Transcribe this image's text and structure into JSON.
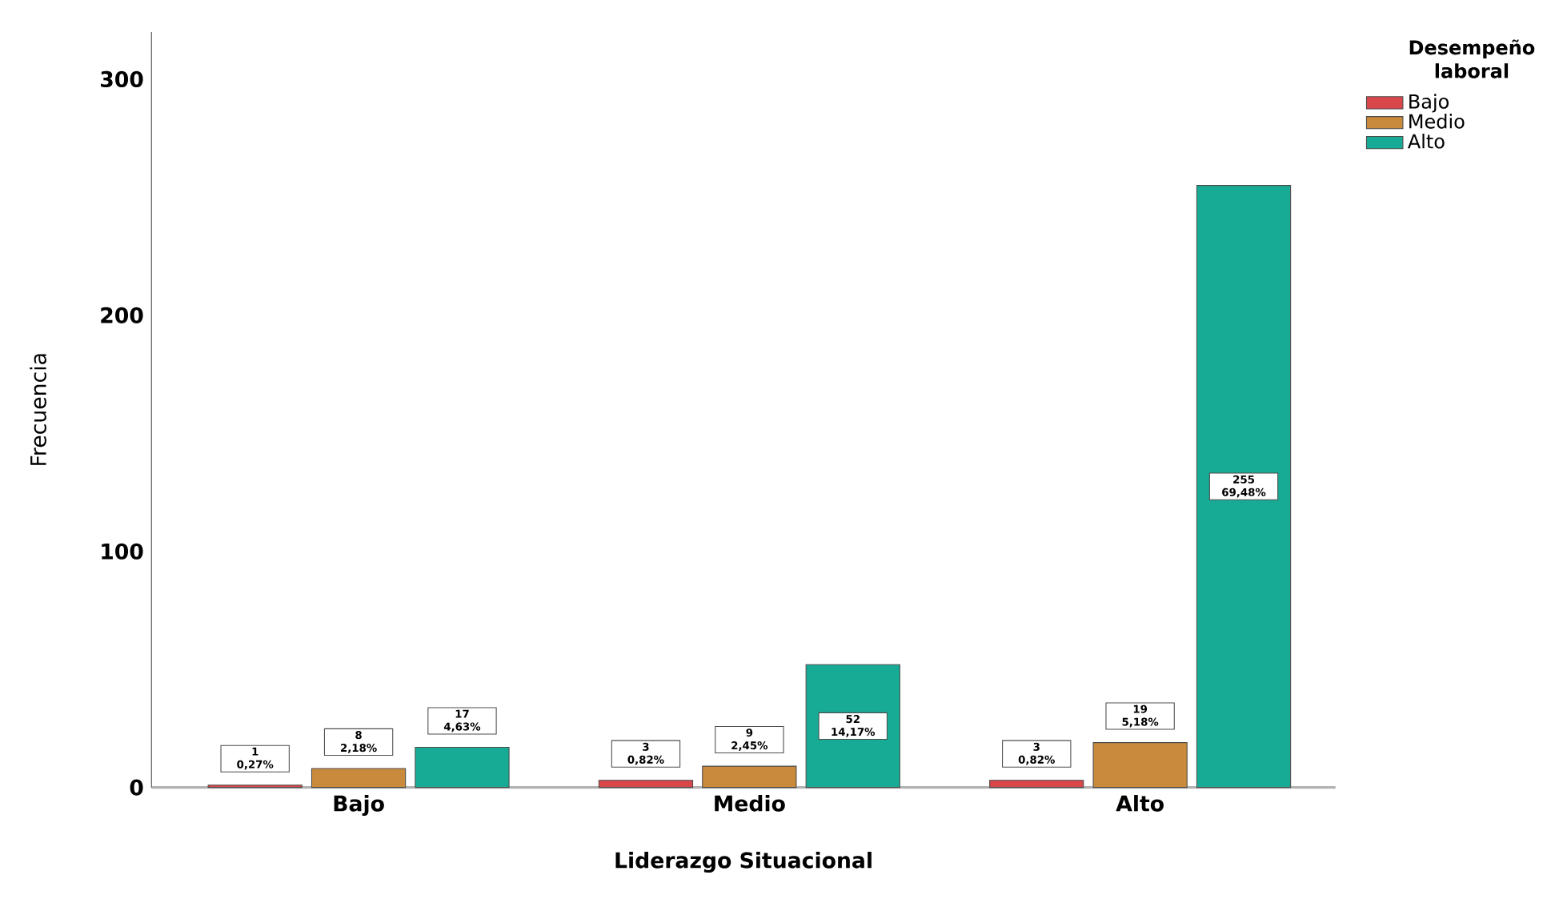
{
  "chart_data": {
    "type": "bar",
    "xlabel": "Liderazgo Situacional",
    "ylabel": "Frecuencia",
    "legend_title": "Desempeño laboral",
    "categories": [
      "Bajo",
      "Medio",
      "Alto"
    ],
    "series": [
      {
        "name": "Bajo",
        "color": "#d9474b",
        "values": [
          1,
          3,
          3
        ],
        "value_labels": [
          "1 0,27%",
          "3 0,82%",
          "3 0,82%"
        ]
      },
      {
        "name": "Medio",
        "color": "#c98a3c",
        "values": [
          8,
          9,
          19
        ],
        "value_labels": [
          "8 2,18%",
          "9 2,45%",
          "19 5,18%"
        ]
      },
      {
        "name": "Alto",
        "color": "#17ab96",
        "values": [
          17,
          52,
          255
        ],
        "value_labels": [
          "17 4,63%",
          "52 14,17%",
          "255 69,48%"
        ]
      }
    ],
    "ylim": [
      0,
      320
    ],
    "yticks": [
      0,
      100,
      200,
      300
    ],
    "grid": false,
    "legend": "top right"
  }
}
